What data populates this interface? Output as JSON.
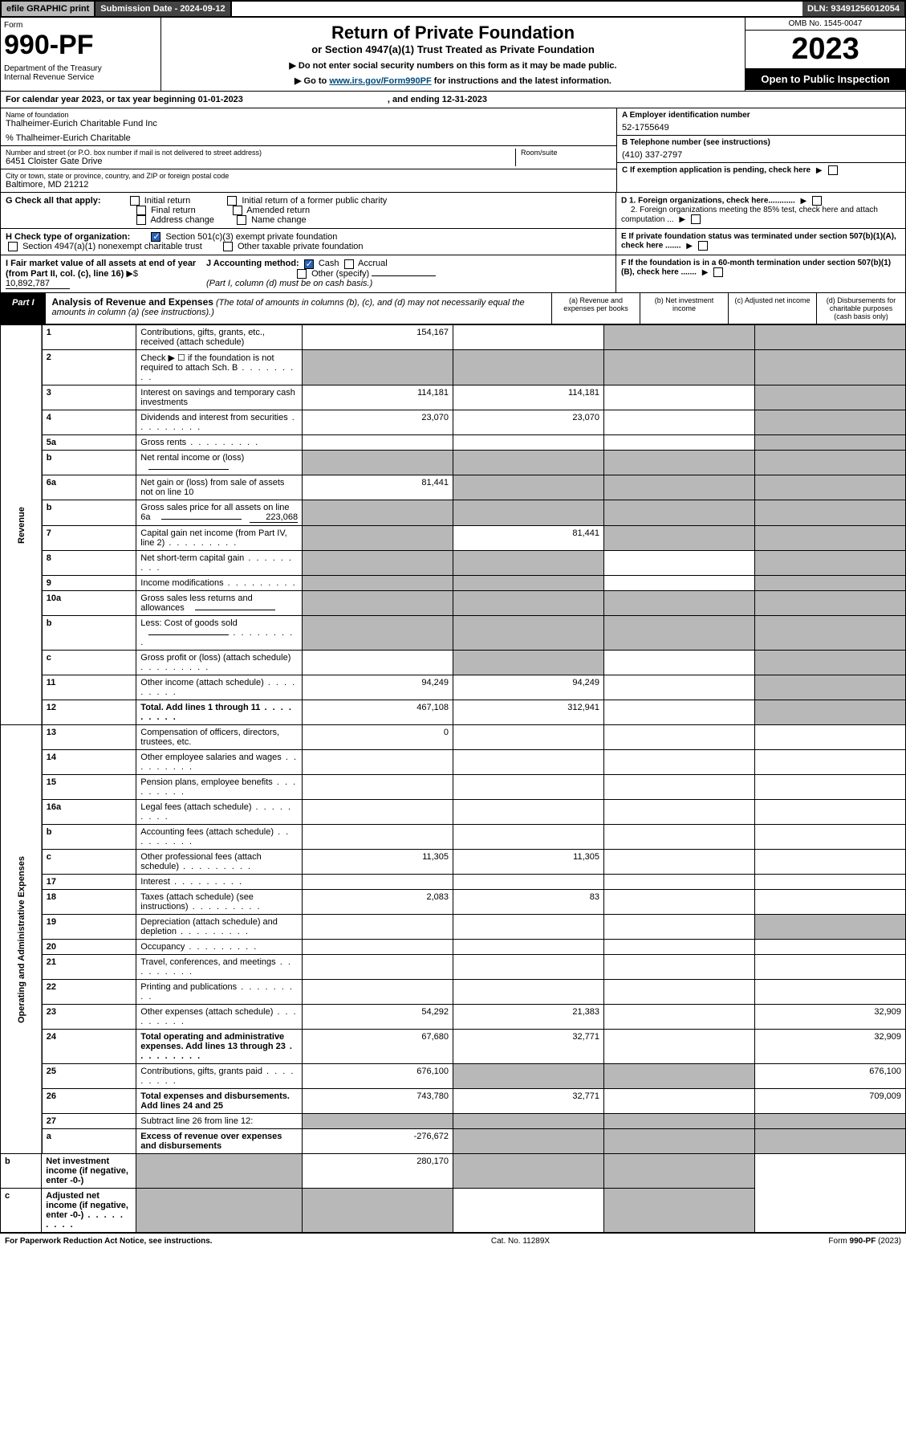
{
  "top": {
    "efile": "efile GRAPHIC print",
    "submission": "Submission Date - 2024-09-12",
    "dln": "DLN: 93491256012054"
  },
  "header": {
    "form_label": "Form",
    "form_number": "990-PF",
    "dept": "Department of the Treasury\nInternal Revenue Service",
    "title": "Return of Private Foundation",
    "subtitle": "or Section 4947(a)(1) Trust Treated as Private Foundation",
    "note1": "▶ Do not enter social security numbers on this form as it may be made public.",
    "note2_pre": "▶ Go to ",
    "note2_link": "www.irs.gov/Form990PF",
    "note2_post": " for instructions and the latest information.",
    "omb": "OMB No. 1545-0047",
    "year": "2023",
    "open": "Open to Public Inspection"
  },
  "calyear": {
    "text": "For calendar year 2023, or tax year beginning 01-01-2023",
    "ending": ", and ending 12-31-2023"
  },
  "info": {
    "name_lbl": "Name of foundation",
    "name": "Thalheimer-Eurich Charitable Fund Inc",
    "care_of": "% Thalheimer-Eurich Charitable",
    "addr_lbl": "Number and street (or P.O. box number if mail is not delivered to street address)",
    "addr": "6451 Cloister Gate Drive",
    "room_lbl": "Room/suite",
    "city_lbl": "City or town, state or province, country, and ZIP or foreign postal code",
    "city": "Baltimore, MD  21212",
    "a_lbl": "A Employer identification number",
    "a_val": "52-1755649",
    "b_lbl": "B Telephone number (see instructions)",
    "b_val": "(410) 337-2797",
    "c_lbl": "C If exemption application is pending, check here",
    "d1": "D 1. Foreign organizations, check here............",
    "d2": "2. Foreign organizations meeting the 85% test, check here and attach computation ...",
    "e": "E  If private foundation status was terminated under section 507(b)(1)(A), check here .......",
    "f": "F  If the foundation is in a 60-month termination under section 507(b)(1)(B), check here ......."
  },
  "g": {
    "label": "G Check all that apply:",
    "opts": [
      "Initial return",
      "Final return",
      "Address change",
      "Initial return of a former public charity",
      "Amended return",
      "Name change"
    ]
  },
  "h": {
    "label": "H Check type of organization:",
    "opt1": "Section 501(c)(3) exempt private foundation",
    "opt2": "Section 4947(a)(1) nonexempt charitable trust",
    "opt3": "Other taxable private foundation"
  },
  "i": {
    "label": "I Fair market value of all assets at end of year (from Part II, col. (c), line 16)",
    "val": "10,892,787"
  },
  "j": {
    "label": "J Accounting method:",
    "cash": "Cash",
    "accrual": "Accrual",
    "other": "Other (specify)",
    "note": "(Part I, column (d) must be on cash basis.)"
  },
  "part1": {
    "badge": "Part I",
    "title": "Analysis of Revenue and Expenses",
    "note": "(The total of amounts in columns (b), (c), and (d) may not necessarily equal the amounts in column (a) (see instructions).)",
    "cols": [
      "(a)   Revenue and expenses per books",
      "(b)   Net investment income",
      "(c)   Adjusted net income",
      "(d)  Disbursements for charitable purposes (cash basis only)"
    ]
  },
  "sides": {
    "rev": "Revenue",
    "exp": "Operating and Administrative Expenses"
  },
  "rows": [
    {
      "n": "1",
      "d": "Contributions, gifts, grants, etc., received (attach schedule)",
      "a": "154,167",
      "b": "",
      "c": "shade",
      "e": "shade"
    },
    {
      "n": "2",
      "d": "Check ▶ ☐ if the foundation is not required to attach Sch. B",
      "dots": true,
      "a": "shade",
      "b": "shade",
      "c": "shade",
      "e": "shade"
    },
    {
      "n": "3",
      "d": "Interest on savings and temporary cash investments",
      "a": "114,181",
      "b": "114,181",
      "c": "",
      "e": "shade"
    },
    {
      "n": "4",
      "d": "Dividends and interest from securities",
      "dots": true,
      "a": "23,070",
      "b": "23,070",
      "c": "",
      "e": "shade"
    },
    {
      "n": "5a",
      "d": "Gross rents",
      "dots": true,
      "a": "",
      "b": "",
      "c": "",
      "e": "shade"
    },
    {
      "n": "b",
      "d": "Net rental income or (loss)",
      "inline": true,
      "a": "shade",
      "b": "shade",
      "c": "shade",
      "e": "shade"
    },
    {
      "n": "6a",
      "d": "Net gain or (loss) from sale of assets not on line 10",
      "a": "81,441",
      "b": "shade",
      "c": "shade",
      "e": "shade"
    },
    {
      "n": "b",
      "d": "Gross sales price for all assets on line 6a",
      "inline": true,
      "iv": "223,068",
      "a": "shade",
      "b": "shade",
      "c": "shade",
      "e": "shade"
    },
    {
      "n": "7",
      "d": "Capital gain net income (from Part IV, line 2)",
      "dots": true,
      "a": "shade",
      "b": "81,441",
      "c": "shade",
      "e": "shade"
    },
    {
      "n": "8",
      "d": "Net short-term capital gain",
      "dots": true,
      "a": "shade",
      "b": "shade",
      "c": "",
      "e": "shade"
    },
    {
      "n": "9",
      "d": "Income modifications",
      "dots": true,
      "a": "shade",
      "b": "shade",
      "c": "",
      "e": "shade"
    },
    {
      "n": "10a",
      "d": "Gross sales less returns and allowances",
      "inline": true,
      "a": "shade",
      "b": "shade",
      "c": "shade",
      "e": "shade"
    },
    {
      "n": "b",
      "d": "Less: Cost of goods sold",
      "dots": true,
      "inline": true,
      "a": "shade",
      "b": "shade",
      "c": "shade",
      "e": "shade"
    },
    {
      "n": "c",
      "d": "Gross profit or (loss) (attach schedule)",
      "dots": true,
      "a": "",
      "b": "shade",
      "c": "",
      "e": "shade"
    },
    {
      "n": "11",
      "d": "Other income (attach schedule)",
      "dots": true,
      "a": "94,249",
      "b": "94,249",
      "c": "",
      "e": "shade"
    },
    {
      "n": "12",
      "d": "Total. Add lines 1 through 11",
      "dots": true,
      "bold": true,
      "a": "467,108",
      "b": "312,941",
      "c": "",
      "e": "shade"
    },
    {
      "n": "13",
      "d": "Compensation of officers, directors, trustees, etc.",
      "a": "0",
      "b": "",
      "c": "",
      "e": ""
    },
    {
      "n": "14",
      "d": "Other employee salaries and wages",
      "dots": true,
      "a": "",
      "b": "",
      "c": "",
      "e": ""
    },
    {
      "n": "15",
      "d": "Pension plans, employee benefits",
      "dots": true,
      "a": "",
      "b": "",
      "c": "",
      "e": ""
    },
    {
      "n": "16a",
      "d": "Legal fees (attach schedule)",
      "dots": true,
      "a": "",
      "b": "",
      "c": "",
      "e": ""
    },
    {
      "n": "b",
      "d": "Accounting fees (attach schedule)",
      "dots": true,
      "a": "",
      "b": "",
      "c": "",
      "e": ""
    },
    {
      "n": "c",
      "d": "Other professional fees (attach schedule)",
      "dots": true,
      "a": "11,305",
      "b": "11,305",
      "c": "",
      "e": ""
    },
    {
      "n": "17",
      "d": "Interest",
      "dots": true,
      "a": "",
      "b": "",
      "c": "",
      "e": ""
    },
    {
      "n": "18",
      "d": "Taxes (attach schedule) (see instructions)",
      "dots": true,
      "a": "2,083",
      "b": "83",
      "c": "",
      "e": ""
    },
    {
      "n": "19",
      "d": "Depreciation (attach schedule) and depletion",
      "dots": true,
      "a": "",
      "b": "",
      "c": "",
      "e": "shade"
    },
    {
      "n": "20",
      "d": "Occupancy",
      "dots": true,
      "a": "",
      "b": "",
      "c": "",
      "e": ""
    },
    {
      "n": "21",
      "d": "Travel, conferences, and meetings",
      "dots": true,
      "a": "",
      "b": "",
      "c": "",
      "e": ""
    },
    {
      "n": "22",
      "d": "Printing and publications",
      "dots": true,
      "a": "",
      "b": "",
      "c": "",
      "e": ""
    },
    {
      "n": "23",
      "d": "Other expenses (attach schedule)",
      "dots": true,
      "a": "54,292",
      "b": "21,383",
      "c": "",
      "e": "32,909"
    },
    {
      "n": "24",
      "d": "Total operating and administrative expenses. Add lines 13 through 23",
      "dots": true,
      "bold": true,
      "a": "67,680",
      "b": "32,771",
      "c": "",
      "e": "32,909"
    },
    {
      "n": "25",
      "d": "Contributions, gifts, grants paid",
      "dots": true,
      "a": "676,100",
      "b": "shade",
      "c": "shade",
      "e": "676,100"
    },
    {
      "n": "26",
      "d": "Total expenses and disbursements. Add lines 24 and 25",
      "bold": true,
      "a": "743,780",
      "b": "32,771",
      "c": "",
      "e": "709,009"
    },
    {
      "n": "27",
      "d": "Subtract line 26 from line 12:",
      "a": "shade",
      "b": "shade",
      "c": "shade",
      "e": "shade"
    },
    {
      "n": "a",
      "d": "Excess of revenue over expenses and disbursements",
      "bold": true,
      "a": "-276,672",
      "b": "shade",
      "c": "shade",
      "e": "shade"
    },
    {
      "n": "b",
      "d": "Net investment income (if negative, enter -0-)",
      "bold": true,
      "a": "shade",
      "b": "280,170",
      "c": "shade",
      "e": "shade"
    },
    {
      "n": "c",
      "d": "Adjusted net income (if negative, enter -0-)",
      "dots": true,
      "bold": true,
      "a": "shade",
      "b": "shade",
      "c": "",
      "e": "shade"
    }
  ],
  "footer": {
    "left": "For Paperwork Reduction Act Notice, see instructions.",
    "mid": "Cat. No. 11289X",
    "right": "Form 990-PF (2023)"
  }
}
